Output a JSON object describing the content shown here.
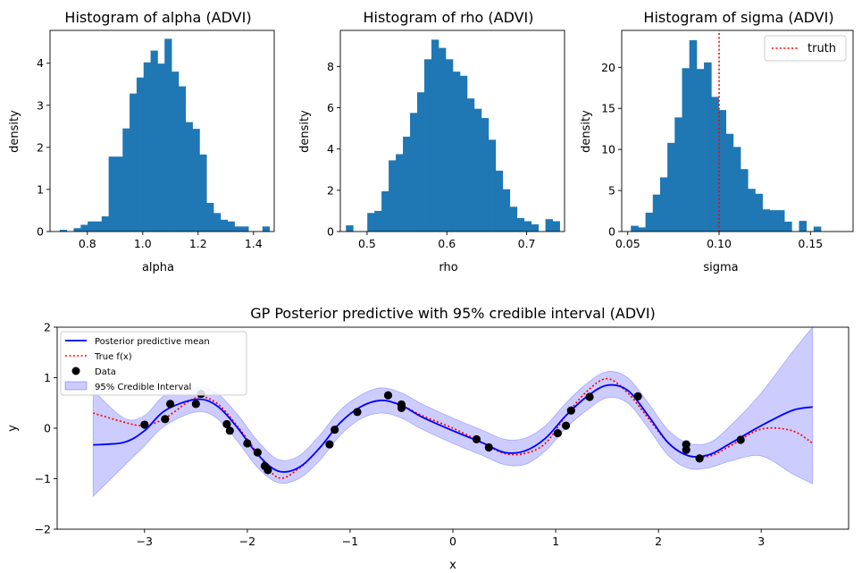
{
  "colors": {
    "bar": "#1f77b4",
    "mean": "#0000ff",
    "truth": "#ff0000",
    "band": "#0000ff",
    "data_point": "#000000",
    "text": "#000000",
    "frame": "#000000",
    "background": "#ffffff"
  },
  "chart_data": [
    {
      "type": "bar",
      "title": "Histogram of alpha (ADVI)",
      "xlabel": "alpha",
      "ylabel": "density",
      "xlim": [
        0.665,
        1.475
      ],
      "ylim": [
        0,
        4.78
      ],
      "xticks": [
        0.8,
        1.0,
        1.2,
        1.4
      ],
      "xtick_labels": [
        "0.8",
        "1.0",
        "1.2",
        "1.4"
      ],
      "yticks": [
        0,
        1,
        2,
        3,
        4
      ],
      "ytick_labels": [
        "0",
        "1",
        "2",
        "3",
        "4"
      ],
      "bin_start": 0.7,
      "bin_width": 0.02525,
      "values": [
        0.04,
        0.0,
        0.08,
        0.16,
        0.24,
        0.24,
        0.36,
        1.78,
        1.78,
        2.45,
        3.28,
        3.66,
        4.02,
        4.3,
        3.99,
        4.58,
        3.8,
        3.45,
        2.6,
        2.44,
        1.83,
        0.68,
        0.44,
        0.28,
        0.24,
        0.12,
        0.12,
        0.0,
        0.0,
        0.12
      ]
    },
    {
      "type": "bar",
      "title": "Histogram of rho (ADVI)",
      "xlabel": "rho",
      "ylabel": "density",
      "xlim": [
        0.4665,
        0.7475
      ],
      "ylim": [
        0,
        9.75
      ],
      "xticks": [
        0.5,
        0.6,
        0.7
      ],
      "xtick_labels": [
        "0.5",
        "0.6",
        "0.7"
      ],
      "yticks": [
        0,
        2,
        4,
        6,
        8
      ],
      "ytick_labels": [
        "0",
        "2",
        "4",
        "6",
        "8"
      ],
      "bin_start": 0.4735,
      "bin_width": 0.00893,
      "values": [
        0.3,
        0.0,
        0.0,
        0.9,
        1.0,
        1.95,
        3.45,
        3.75,
        4.6,
        5.75,
        6.75,
        8.35,
        9.3,
        8.9,
        8.35,
        7.75,
        7.55,
        6.45,
        5.95,
        5.5,
        4.45,
        2.95,
        2.05,
        1.2,
        0.65,
        0.5,
        0.35,
        0.0,
        0.6,
        0.5
      ]
    },
    {
      "type": "bar",
      "title": "Histogram of sigma (ADVI)",
      "xlabel": "sigma",
      "ylabel": "density",
      "xlim": [
        0.0467,
        0.1733
      ],
      "ylim": [
        0,
        24.5
      ],
      "xticks": [
        0.05,
        0.1,
        0.15
      ],
      "xtick_labels": [
        "0.05",
        "0.10",
        "0.15"
      ],
      "yticks": [
        0,
        5,
        10,
        15,
        20
      ],
      "ytick_labels": [
        "0",
        "5",
        "10",
        "15",
        "20"
      ],
      "bin_start": 0.0517,
      "bin_width": 0.004,
      "values": [
        0.7,
        0.5,
        2.3,
        4.5,
        6.6,
        10.8,
        13.9,
        19.9,
        23.3,
        19.8,
        20.6,
        16.4,
        14.8,
        11.9,
        10.3,
        7.6,
        5.2,
        4.6,
        2.7,
        2.6,
        2.6,
        1.2,
        0.0,
        1.3,
        0.0,
        0.6
      ],
      "reference_line": {
        "x": 0.1,
        "name": "truth"
      },
      "legend": [
        "truth"
      ],
      "legend_position": "upper right"
    },
    {
      "type": "line",
      "title": "GP Posterior predictive with 95% credible interval (ADVI)",
      "xlabel": "x",
      "ylabel": "y",
      "xlim": [
        -3.85,
        3.85
      ],
      "ylim": [
        -2,
        2
      ],
      "xticks": [
        -3,
        -2,
        -1,
        0,
        1,
        2,
        3
      ],
      "xtick_labels": [
        "−3",
        "−2",
        "−1",
        "0",
        "1",
        "2",
        "3"
      ],
      "yticks": [
        -2,
        -1,
        0,
        1,
        2
      ],
      "ytick_labels": [
        "−2",
        "−1",
        "0",
        "1",
        "2"
      ],
      "legend_position": "upper left",
      "legend": [
        "Posterior predictive mean",
        "True f(x)",
        "Data",
        "95% Credible Interval"
      ],
      "x": [
        -3.5,
        -3.2,
        -3.0,
        -2.8,
        -2.5,
        -2.3,
        -2.1,
        -1.9,
        -1.7,
        -1.5,
        -1.3,
        -1.1,
        -0.9,
        -0.7,
        -0.5,
        -0.3,
        0.0,
        0.3,
        0.5,
        0.7,
        0.9,
        1.1,
        1.3,
        1.5,
        1.7,
        1.9,
        2.1,
        2.3,
        2.5,
        2.7,
        3.0,
        3.3,
        3.5
      ],
      "series": [
        {
          "name": "Posterior predictive mean",
          "values": [
            -0.33,
            -0.28,
            -0.05,
            0.35,
            0.57,
            0.45,
            0.02,
            -0.52,
            -0.85,
            -0.78,
            -0.4,
            0.1,
            0.42,
            0.55,
            0.45,
            0.22,
            -0.05,
            -0.3,
            -0.48,
            -0.45,
            -0.2,
            0.25,
            0.62,
            0.85,
            0.75,
            0.25,
            -0.3,
            -0.55,
            -0.52,
            -0.3,
            0.05,
            0.35,
            0.42
          ]
        },
        {
          "name": "True f(x)",
          "values": [
            0.3,
            0.12,
            0.05,
            0.2,
            0.6,
            0.5,
            0.05,
            -0.5,
            -0.98,
            -0.8,
            -0.4,
            0.1,
            0.42,
            0.55,
            0.45,
            0.25,
            0.0,
            -0.3,
            -0.5,
            -0.5,
            -0.3,
            0.25,
            0.72,
            0.98,
            0.7,
            0.2,
            -0.3,
            -0.55,
            -0.55,
            -0.35,
            -0.02,
            -0.05,
            -0.3
          ]
        },
        {
          "name": "95% Credible Interval",
          "lower": [
            -1.35,
            -0.75,
            -0.35,
            0.05,
            0.32,
            0.2,
            -0.25,
            -0.78,
            -1.08,
            -1.0,
            -0.65,
            -0.15,
            0.18,
            0.3,
            0.2,
            -0.02,
            -0.3,
            -0.55,
            -0.72,
            -0.72,
            -0.45,
            0.0,
            0.35,
            0.6,
            0.5,
            0.0,
            -0.55,
            -0.8,
            -0.78,
            -0.65,
            -0.55,
            -0.9,
            -1.1
          ],
          "upper": [
            0.75,
            0.2,
            0.25,
            0.65,
            0.8,
            0.7,
            0.28,
            -0.25,
            -0.62,
            -0.55,
            -0.15,
            0.35,
            0.65,
            0.8,
            0.7,
            0.48,
            0.2,
            -0.05,
            -0.22,
            -0.2,
            0.05,
            0.5,
            0.88,
            1.12,
            1.0,
            0.5,
            -0.05,
            -0.3,
            -0.28,
            0.05,
            0.7,
            1.5,
            2.0
          ]
        },
        {
          "name": "Data",
          "points": [
            [
              -3.0,
              0.07
            ],
            [
              -2.8,
              0.18
            ],
            [
              -2.75,
              0.48
            ],
            [
              -2.5,
              0.48
            ],
            [
              -2.45,
              0.68
            ],
            [
              -2.2,
              0.08
            ],
            [
              -2.17,
              -0.05
            ],
            [
              -2.0,
              -0.3
            ],
            [
              -1.9,
              -0.48
            ],
            [
              -1.83,
              -0.75
            ],
            [
              -1.8,
              -0.83
            ],
            [
              -1.2,
              -0.32
            ],
            [
              -1.15,
              -0.03
            ],
            [
              -0.93,
              0.32
            ],
            [
              -0.63,
              0.65
            ],
            [
              -0.5,
              0.47
            ],
            [
              -0.5,
              0.4
            ],
            [
              0.23,
              -0.22
            ],
            [
              0.35,
              -0.38
            ],
            [
              1.02,
              -0.1
            ],
            [
              1.1,
              0.05
            ],
            [
              1.15,
              0.35
            ],
            [
              1.33,
              0.62
            ],
            [
              1.8,
              0.63
            ],
            [
              2.27,
              -0.32
            ],
            [
              2.27,
              -0.43
            ],
            [
              2.4,
              -0.6
            ],
            [
              2.8,
              -0.23
            ]
          ]
        }
      ]
    }
  ]
}
